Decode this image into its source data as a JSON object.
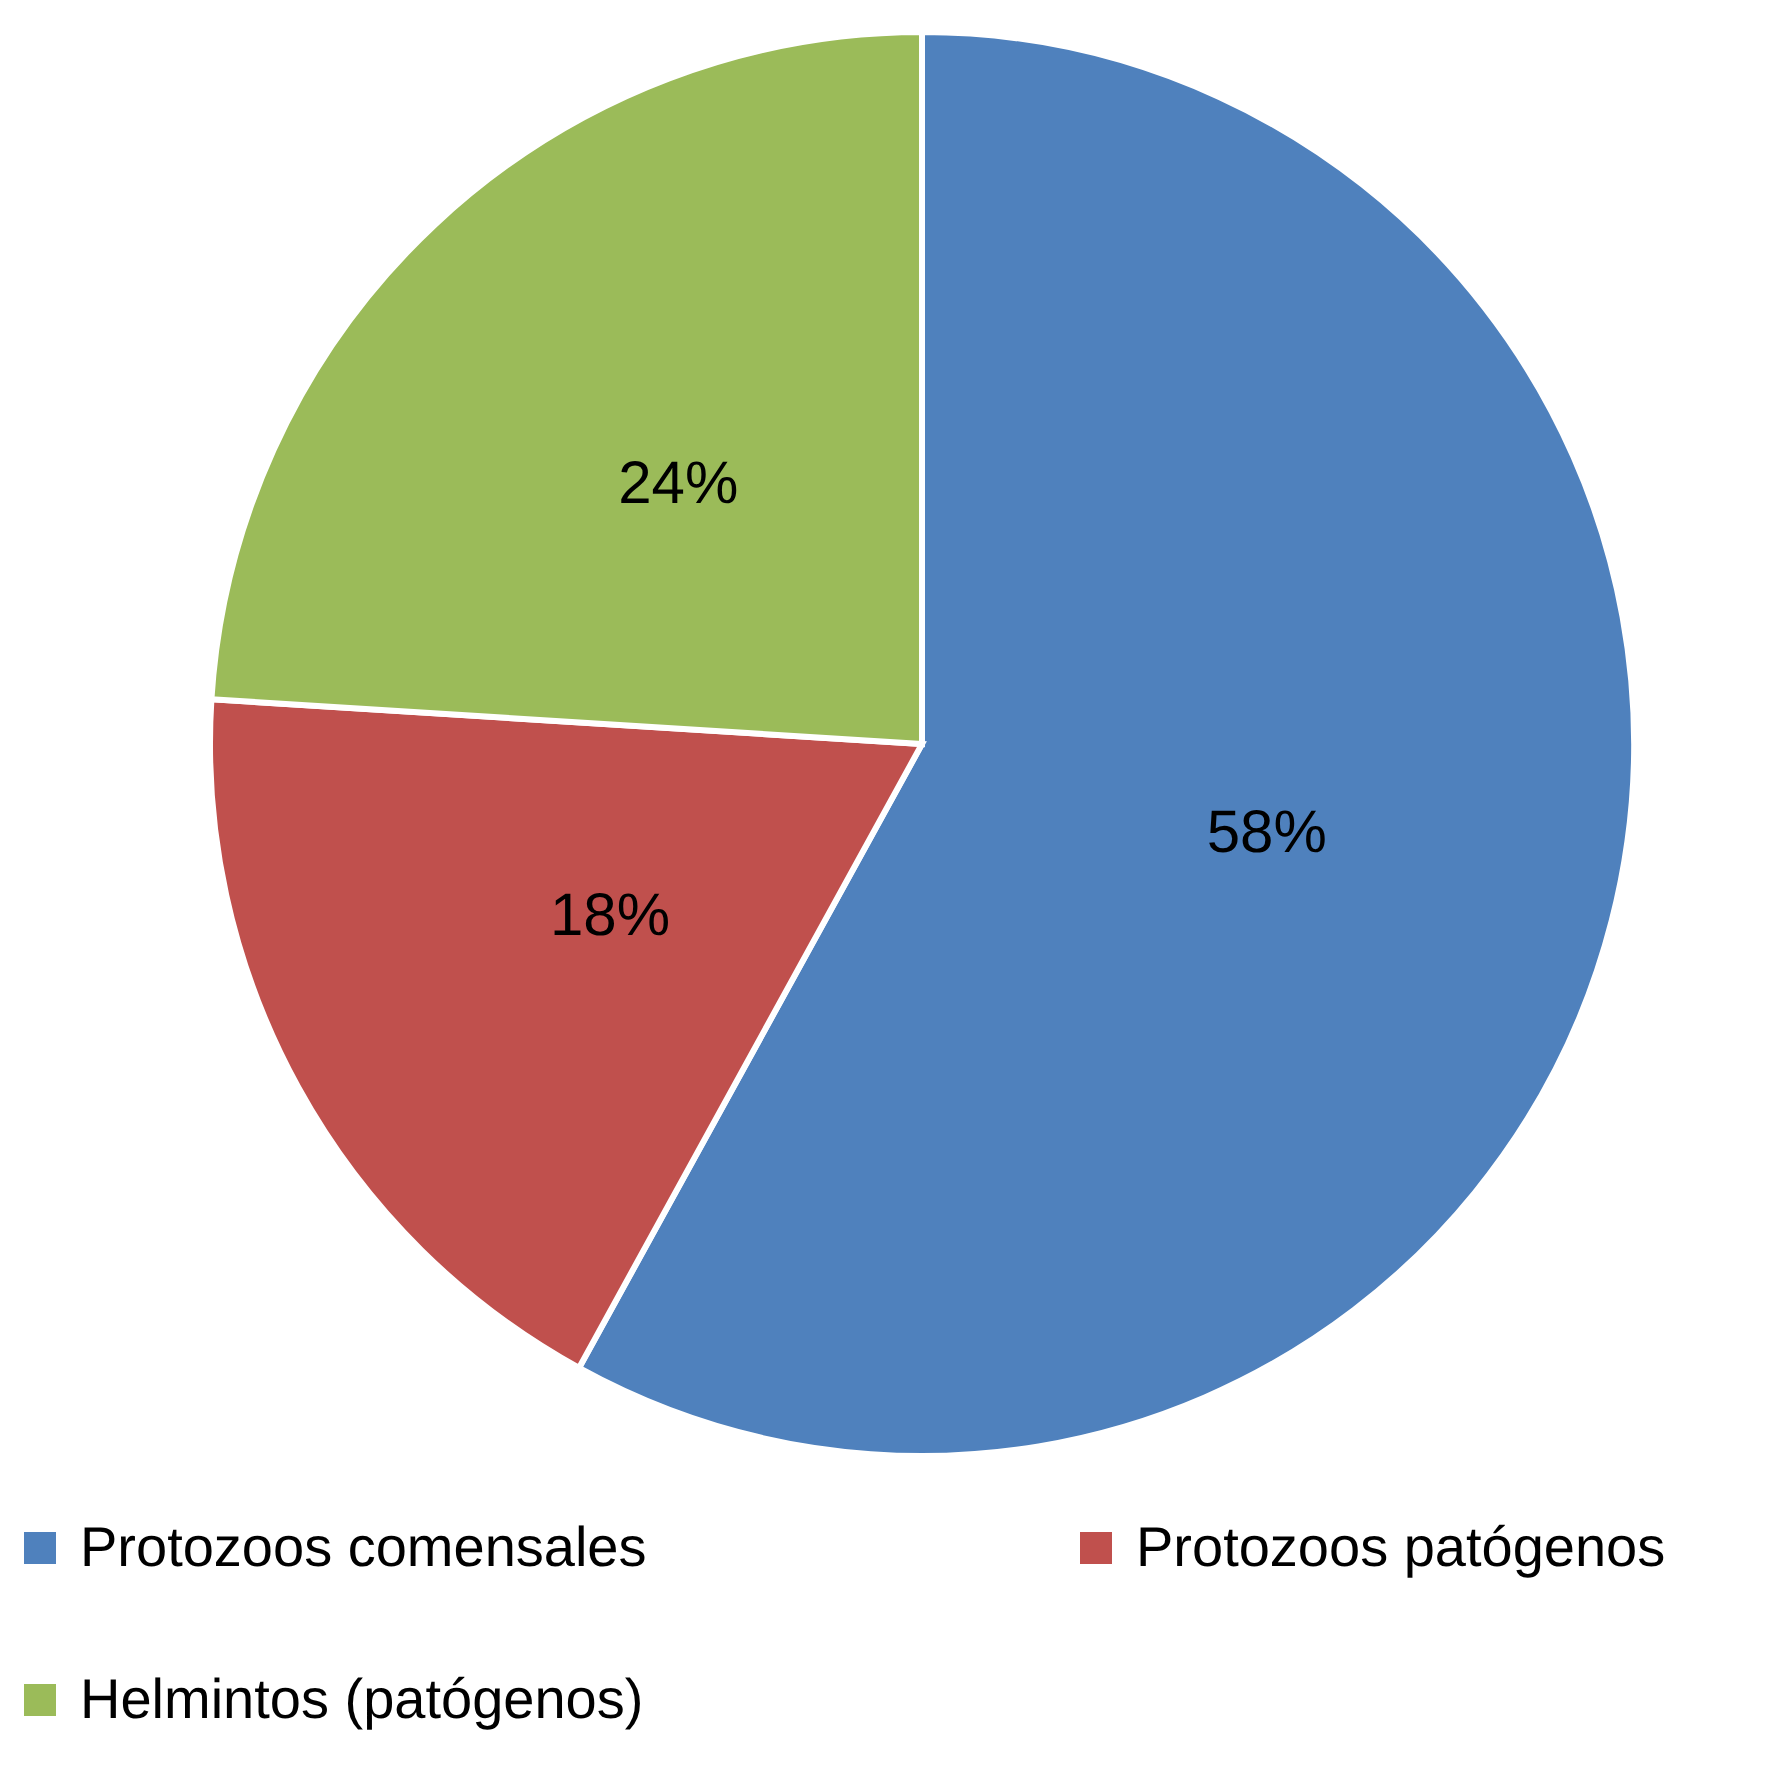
{
  "chart_data": {
    "type": "pie",
    "categories": [
      "Protozoos comensales",
      "Protozoos patógenos",
      "Helmintos (patógenos)"
    ],
    "values": [
      58,
      18,
      24
    ],
    "colors": [
      "#4f81bd",
      "#c0504d",
      "#9bbb59"
    ],
    "value_labels": [
      "58%",
      "18%",
      "24%"
    ],
    "legend": "bottom"
  }
}
